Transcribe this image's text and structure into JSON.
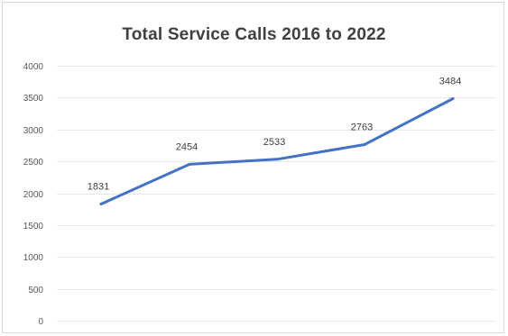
{
  "chart_data": {
    "type": "line",
    "title": "Total Service Calls 2016 to 2022",
    "xlabel": "",
    "ylabel": "",
    "categories": [
      "",
      "",
      "",
      "",
      ""
    ],
    "series": [
      {
        "values": [
          1831,
          2454,
          2533,
          2763,
          3484
        ],
        "color": "#4472c4"
      }
    ],
    "data_labels": [
      "1831",
      "2454",
      "2533",
      "2763",
      "3484"
    ],
    "ylim": [
      0,
      4000
    ],
    "y_ticks": [
      0,
      500,
      1000,
      1500,
      2000,
      2500,
      3000,
      3500,
      4000
    ],
    "y_tick_labels": [
      "0",
      "500",
      "1000",
      "1500",
      "2000",
      "2500",
      "3000",
      "3500",
      "4000"
    ],
    "grid": true,
    "legend": "none",
    "gridline_color": "#e6e6e6"
  }
}
